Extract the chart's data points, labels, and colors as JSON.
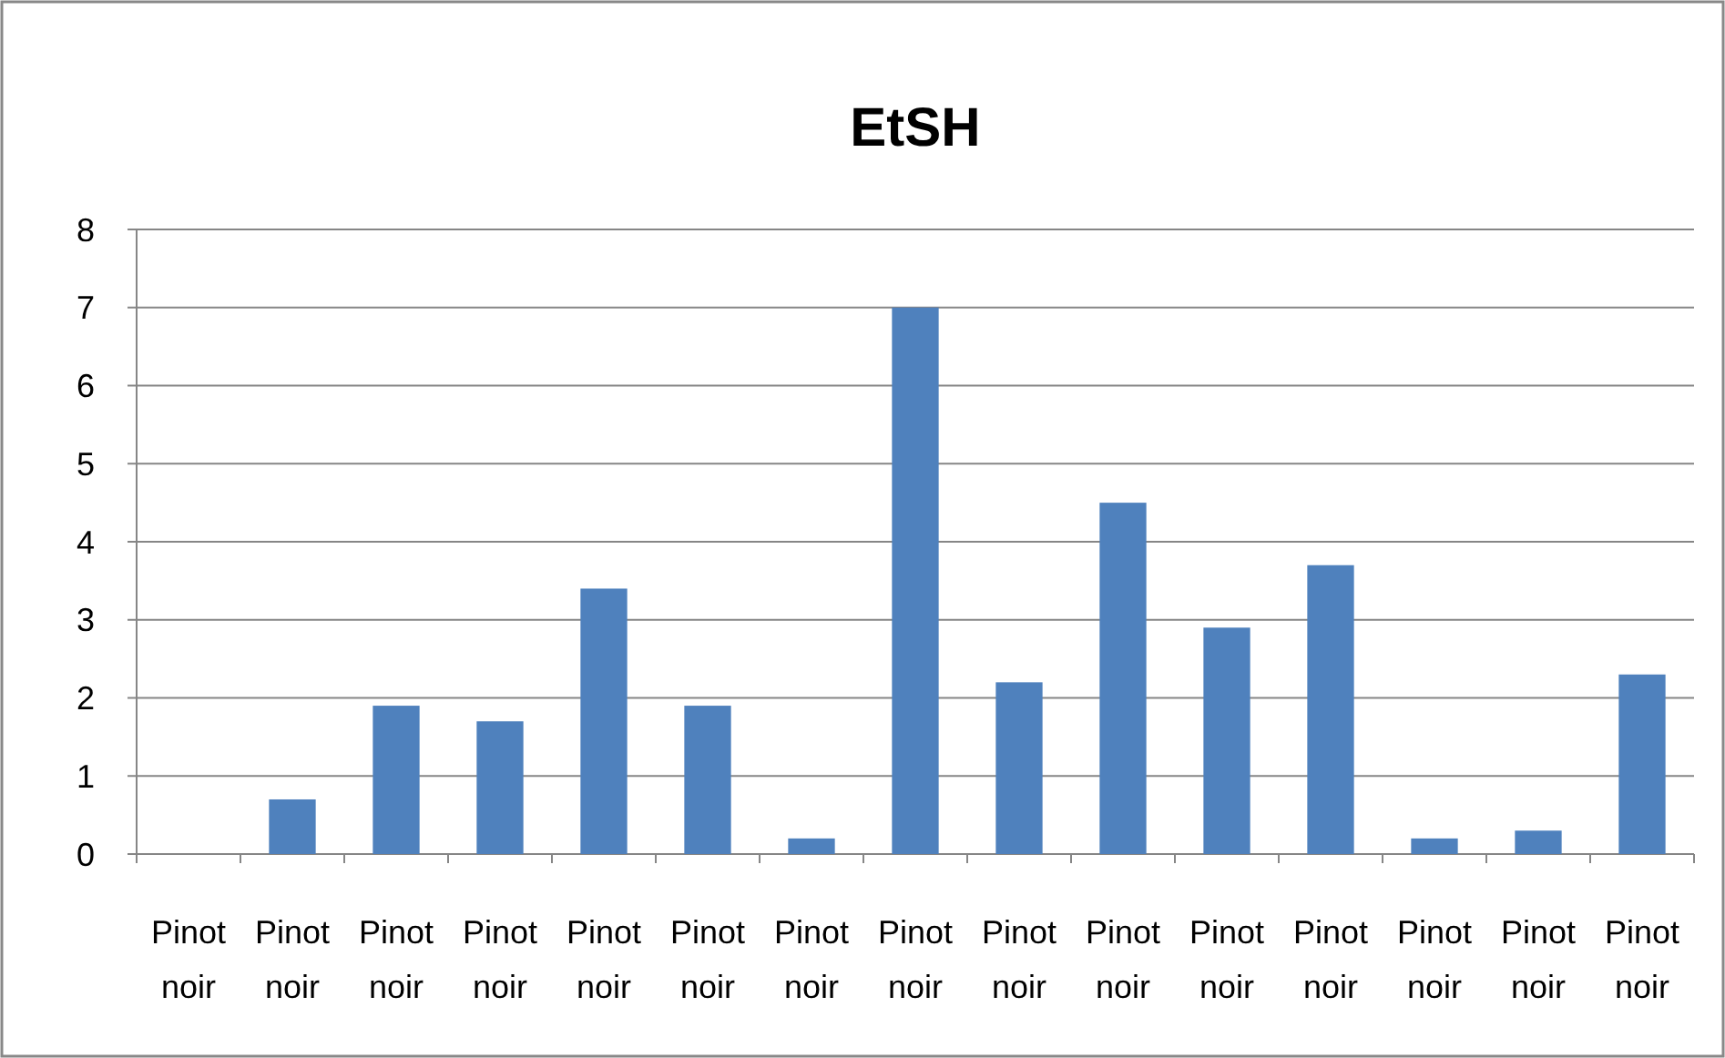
{
  "chart_data": {
    "type": "bar",
    "title": "EtSH",
    "categories": [
      "Pinot noir",
      "Pinot noir",
      "Pinot noir",
      "Pinot noir",
      "Pinot noir",
      "Pinot noir",
      "Pinot noir",
      "Pinot noir",
      "Pinot noir",
      "Pinot noir",
      "Pinot noir",
      "Pinot noir",
      "Pinot noir",
      "Pinot noir",
      "Pinot noir"
    ],
    "values": [
      0,
      0.7,
      1.9,
      1.7,
      3.4,
      1.9,
      0.2,
      7.0,
      2.2,
      4.5,
      2.9,
      3.7,
      0.2,
      0.3,
      2.3
    ],
    "color": "#4f81bd",
    "ylim": [
      0,
      8
    ],
    "yticks": [
      0,
      1,
      2,
      3,
      4,
      5,
      6,
      7,
      8
    ],
    "grid": "y"
  }
}
